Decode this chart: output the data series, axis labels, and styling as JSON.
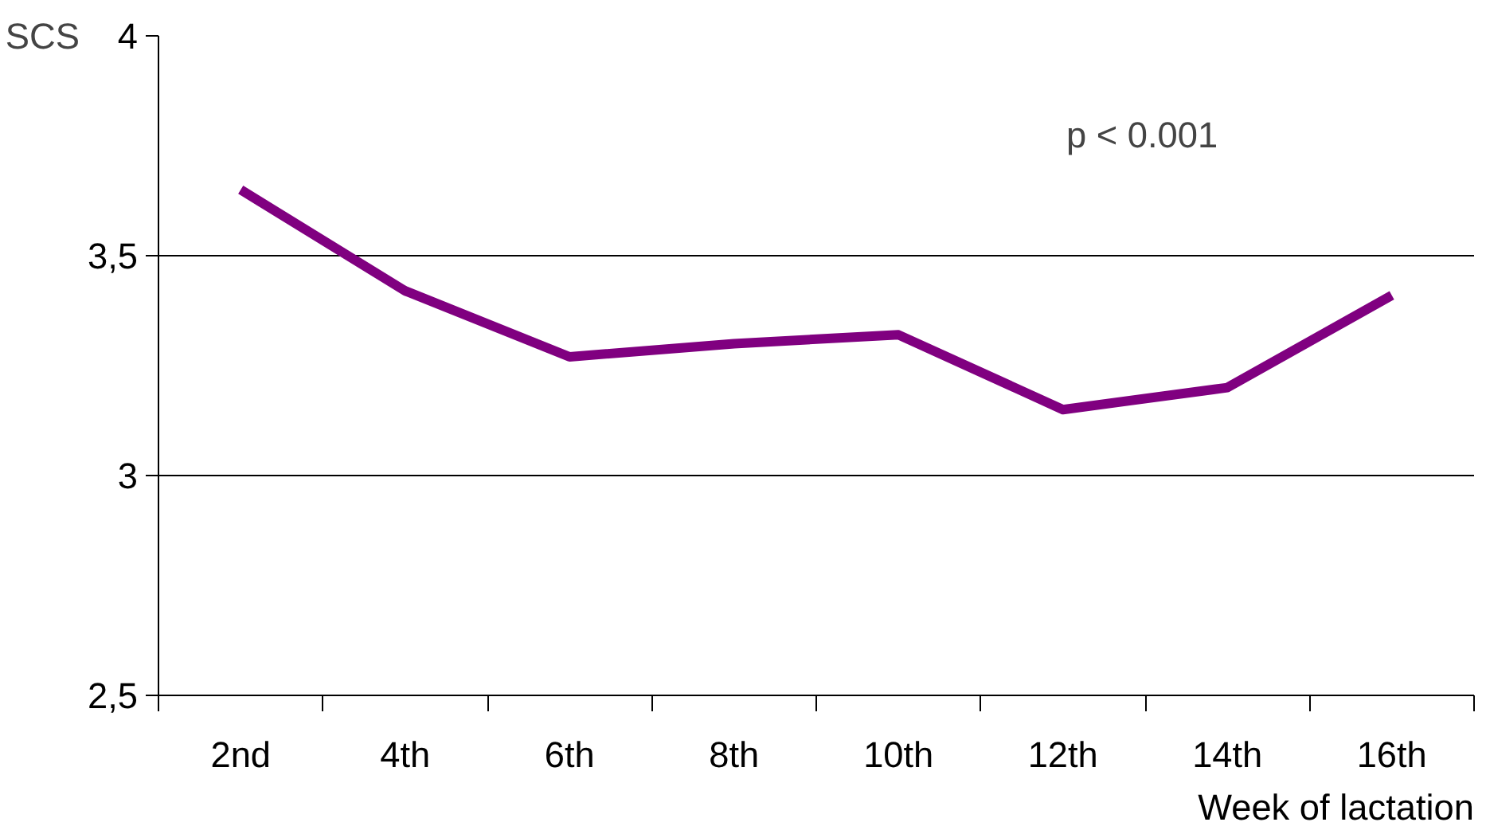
{
  "chart_data": {
    "type": "line",
    "categories": [
      "2nd",
      "4th",
      "6th",
      "8th",
      "10th",
      "12th",
      "14th",
      "16th"
    ],
    "series": [
      {
        "color": "#800080",
        "values": [
          3.65,
          3.42,
          3.27,
          3.3,
          3.32,
          3.15,
          3.2,
          3.41
        ]
      }
    ],
    "ylabel": "SCS",
    "xlabel": "Week of lactation",
    "annotations": [
      "p < 0.001"
    ],
    "ylim": [
      2.5,
      4
    ],
    "yticks": [
      {
        "value": 2.5,
        "label": "2,5"
      },
      3,
      {
        "value": 3.5,
        "label": "3,5"
      },
      4
    ],
    "grid": "y",
    "marker": "none",
    "line_style": "solid"
  }
}
